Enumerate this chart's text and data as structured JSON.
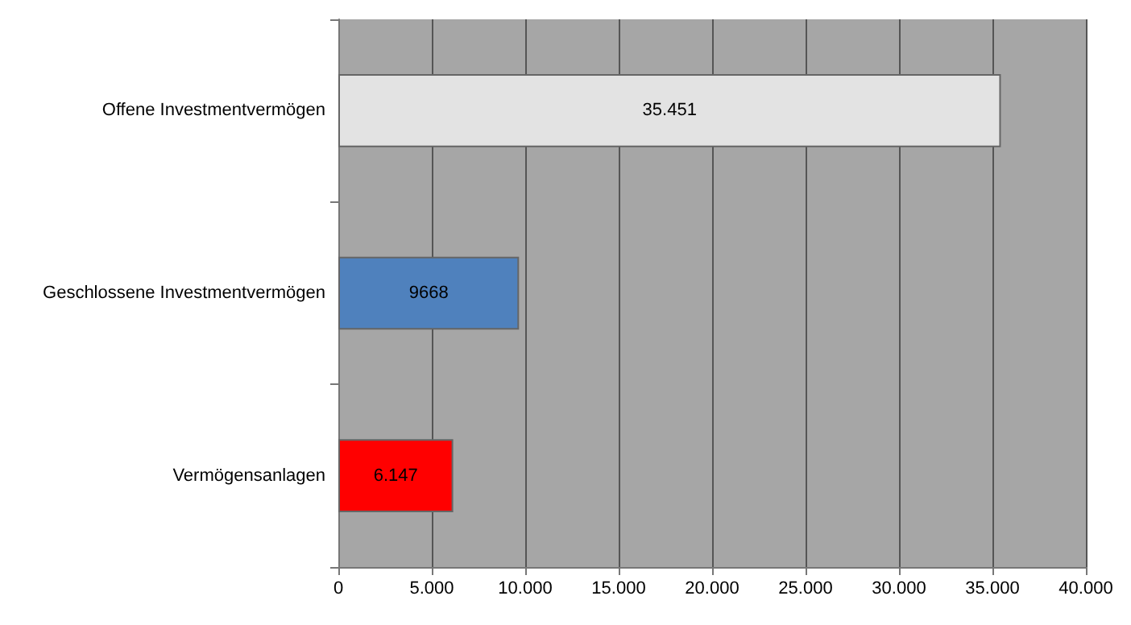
{
  "chart_data": {
    "type": "bar",
    "orientation": "horizontal",
    "categories": [
      "Offene Investmentvermögen",
      "Geschlossene Investmentvermögen",
      "Vermögensanlagen"
    ],
    "values": [
      35451,
      9668,
      6147
    ],
    "colors": [
      "#e3e3e3",
      "#4f81bd",
      "#ff0000"
    ],
    "value_labels": [
      "35.451",
      "9668",
      "6.147"
    ],
    "xlim": [
      0,
      40000
    ],
    "xticks": [
      0,
      {
        "value": 5000,
        "label": "5.000"
      },
      {
        "value": 10000,
        "label": "10.000"
      },
      {
        "value": 15000,
        "label": "15.000"
      },
      {
        "value": 20000,
        "label": "20.000"
      },
      {
        "value": 25000,
        "label": "25.000"
      },
      {
        "value": 30000,
        "label": "30.000"
      },
      {
        "value": 35000,
        "label": "35.000"
      },
      {
        "value": 40000,
        "label": "40.000"
      }
    ],
    "grid": "x"
  }
}
